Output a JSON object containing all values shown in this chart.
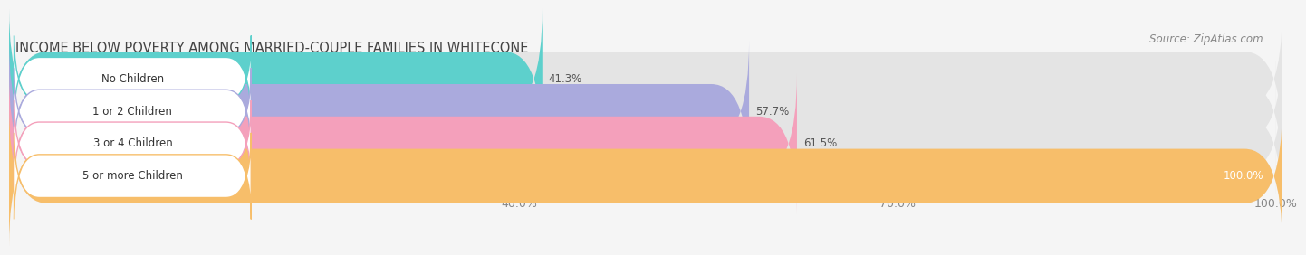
{
  "title": "INCOME BELOW POVERTY AMONG MARRIED-COUPLE FAMILIES IN WHITECONE",
  "source": "Source: ZipAtlas.com",
  "categories": [
    "No Children",
    "1 or 2 Children",
    "3 or 4 Children",
    "5 or more Children"
  ],
  "values": [
    41.3,
    57.7,
    61.5,
    100.0
  ],
  "bar_colors": [
    "#5dd0cc",
    "#aaaadd",
    "#f4a0bb",
    "#f7be6a"
  ],
  "xlim": [
    0,
    100
  ],
  "xticks": [
    40.0,
    70.0,
    100.0
  ],
  "xtick_labels": [
    "40.0%",
    "70.0%",
    "100.0%"
  ],
  "background_color": "#f5f5f5",
  "bar_background_color": "#e4e4e4",
  "title_fontsize": 10.5,
  "source_fontsize": 8.5,
  "label_fontsize": 8.5,
  "value_fontsize": 8.5,
  "tick_fontsize": 9
}
